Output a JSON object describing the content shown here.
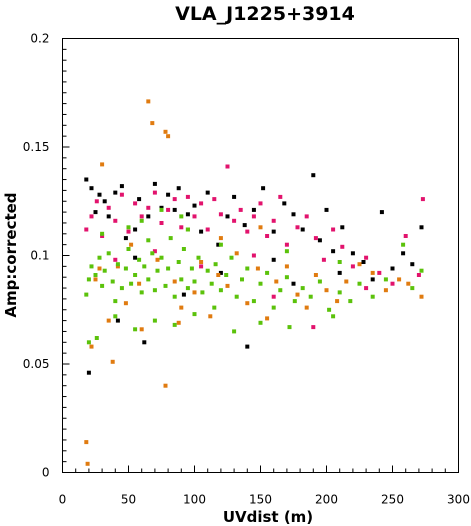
{
  "chart_data": {
    "type": "scatter",
    "title": "VLA_J1225+3914",
    "xlabel": "UVdist (m)",
    "ylabel": "Amp:corrected",
    "xlim": [
      0,
      300
    ],
    "ylim": [
      0,
      0.2
    ],
    "x_ticks": [
      "0",
      "50",
      "100",
      "150",
      "200",
      "250",
      "300"
    ],
    "y_ticks": [
      "0",
      "0.05",
      "0.1",
      "0.15",
      "0.2"
    ],
    "grid": false,
    "legend": "none",
    "series": [
      {
        "color": "#000000",
        "points": [
          [
            18,
            0.135
          ],
          [
            20,
            0.046
          ],
          [
            22,
            0.131
          ],
          [
            25,
            0.12
          ],
          [
            28,
            0.128
          ],
          [
            32,
            0.125
          ],
          [
            35,
            0.118
          ],
          [
            40,
            0.129
          ],
          [
            45,
            0.132
          ],
          [
            48,
            0.108
          ],
          [
            55,
            0.112
          ],
          [
            58,
            0.126
          ],
          [
            62,
            0.06
          ],
          [
            65,
            0.118
          ],
          [
            70,
            0.133
          ],
          [
            75,
            0.122
          ],
          [
            80,
            0.128
          ],
          [
            85,
            0.121
          ],
          [
            88,
            0.131
          ],
          [
            95,
            0.119
          ],
          [
            100,
            0.123
          ],
          [
            105,
            0.111
          ],
          [
            110,
            0.129
          ],
          [
            118,
            0.105
          ],
          [
            125,
            0.118
          ],
          [
            130,
            0.127
          ],
          [
            138,
            0.114
          ],
          [
            145,
            0.121
          ],
          [
            152,
            0.131
          ],
          [
            160,
            0.111
          ],
          [
            168,
            0.124
          ],
          [
            175,
            0.119
          ],
          [
            182,
            0.112
          ],
          [
            190,
            0.137
          ],
          [
            195,
            0.107
          ],
          [
            200,
            0.121
          ],
          [
            205,
            0.102
          ],
          [
            212,
            0.113
          ],
          [
            220,
            0.101
          ],
          [
            228,
            0.097
          ],
          [
            235,
            0.089
          ],
          [
            242,
            0.12
          ],
          [
            250,
            0.094
          ],
          [
            258,
            0.101
          ],
          [
            265,
            0.096
          ],
          [
            272,
            0.113
          ],
          [
            140,
            0.058
          ],
          [
            55,
            0.099
          ],
          [
            120,
            0.092
          ],
          [
            160,
            0.098
          ],
          [
            42,
            0.07
          ],
          [
            92,
            0.082
          ],
          [
            175,
            0.087
          ],
          [
            210,
            0.092
          ]
        ]
      },
      {
        "color": "#e2136d",
        "points": [
          [
            18,
            0.112
          ],
          [
            22,
            0.118
          ],
          [
            26,
            0.125
          ],
          [
            30,
            0.109
          ],
          [
            35,
            0.122
          ],
          [
            40,
            0.116
          ],
          [
            45,
            0.128
          ],
          [
            50,
            0.111
          ],
          [
            55,
            0.124
          ],
          [
            60,
            0.118
          ],
          [
            65,
            0.122
          ],
          [
            70,
            0.129
          ],
          [
            75,
            0.115
          ],
          [
            80,
            0.121
          ],
          [
            85,
            0.126
          ],
          [
            90,
            0.113
          ],
          [
            95,
            0.127
          ],
          [
            100,
            0.118
          ],
          [
            105,
            0.124
          ],
          [
            110,
            0.112
          ],
          [
            115,
            0.126
          ],
          [
            120,
            0.119
          ],
          [
            125,
            0.141
          ],
          [
            130,
            0.116
          ],
          [
            135,
            0.121
          ],
          [
            140,
            0.111
          ],
          [
            145,
            0.118
          ],
          [
            150,
            0.124
          ],
          [
            155,
            0.109
          ],
          [
            160,
            0.116
          ],
          [
            165,
            0.127
          ],
          [
            170,
            0.105
          ],
          [
            178,
            0.113
          ],
          [
            185,
            0.118
          ],
          [
            192,
            0.108
          ],
          [
            198,
            0.098
          ],
          [
            205,
            0.112
          ],
          [
            212,
            0.104
          ],
          [
            220,
            0.095
          ],
          [
            230,
            0.099
          ],
          [
            240,
            0.092
          ],
          [
            250,
            0.087
          ],
          [
            260,
            0.109
          ],
          [
            270,
            0.091
          ],
          [
            273,
            0.126
          ],
          [
            190,
            0.067
          ],
          [
            160,
            0.081
          ],
          [
            105,
            0.095
          ],
          [
            70,
            0.102
          ],
          [
            40,
            0.098
          ],
          [
            145,
            0.1
          ],
          [
            230,
            0.085
          ]
        ]
      },
      {
        "color": "#e07b10",
        "points": [
          [
            18,
            0.014
          ],
          [
            19,
            0.004
          ],
          [
            22,
            0.058
          ],
          [
            25,
            0.089
          ],
          [
            30,
            0.142
          ],
          [
            35,
            0.07
          ],
          [
            38,
            0.051
          ],
          [
            42,
            0.095
          ],
          [
            48,
            0.078
          ],
          [
            52,
            0.105
          ],
          [
            58,
            0.087
          ],
          [
            65,
            0.171
          ],
          [
            68,
            0.161
          ],
          [
            72,
            0.098
          ],
          [
            78,
            0.157
          ],
          [
            80,
            0.155
          ],
          [
            78,
            0.04
          ],
          [
            85,
            0.088
          ],
          [
            90,
            0.076
          ],
          [
            95,
            0.112
          ],
          [
            100,
            0.083
          ],
          [
            105,
            0.097
          ],
          [
            112,
            0.072
          ],
          [
            118,
            0.091
          ],
          [
            125,
            0.086
          ],
          [
            132,
            0.101
          ],
          [
            140,
            0.078
          ],
          [
            148,
            0.094
          ],
          [
            155,
            0.071
          ],
          [
            162,
            0.088
          ],
          [
            170,
            0.095
          ],
          [
            178,
            0.082
          ],
          [
            185,
            0.076
          ],
          [
            192,
            0.091
          ],
          [
            200,
            0.084
          ],
          [
            208,
            0.079
          ],
          [
            215,
            0.088
          ],
          [
            225,
            0.096
          ],
          [
            235,
            0.092
          ],
          [
            245,
            0.084
          ],
          [
            255,
            0.089
          ],
          [
            262,
            0.087
          ],
          [
            272,
            0.081
          ],
          [
            88,
            0.069
          ],
          [
            60,
            0.066
          ],
          [
            28,
            0.094
          ],
          [
            120,
            0.108
          ],
          [
            150,
            0.113
          ]
        ]
      },
      {
        "color": "#5bc20b",
        "points": [
          [
            18,
            0.082
          ],
          [
            20,
            0.089
          ],
          [
            22,
            0.095
          ],
          [
            25,
            0.091
          ],
          [
            28,
            0.099
          ],
          [
            30,
            0.086
          ],
          [
            32,
            0.093
          ],
          [
            35,
            0.101
          ],
          [
            38,
            0.088
          ],
          [
            40,
            0.079
          ],
          [
            42,
            0.096
          ],
          [
            45,
            0.085
          ],
          [
            48,
            0.094
          ],
          [
            50,
            0.103
          ],
          [
            52,
            0.087
          ],
          [
            55,
            0.091
          ],
          [
            58,
            0.098
          ],
          [
            60,
            0.083
          ],
          [
            62,
            0.095
          ],
          [
            65,
            0.089
          ],
          [
            68,
            0.101
          ],
          [
            70,
            0.084
          ],
          [
            72,
            0.093
          ],
          [
            75,
            0.099
          ],
          [
            78,
            0.086
          ],
          [
            80,
            0.094
          ],
          [
            82,
            0.108
          ],
          [
            85,
            0.081
          ],
          [
            88,
            0.097
          ],
          [
            90,
            0.089
          ],
          [
            92,
            0.103
          ],
          [
            95,
            0.085
          ],
          [
            98,
            0.094
          ],
          [
            100,
            0.088
          ],
          [
            103,
            0.099
          ],
          [
            106,
            0.083
          ],
          [
            110,
            0.093
          ],
          [
            113,
            0.087
          ],
          [
            116,
            0.096
          ],
          [
            120,
            0.084
          ],
          [
            124,
            0.091
          ],
          [
            128,
            0.099
          ],
          [
            132,
            0.081
          ],
          [
            136,
            0.089
          ],
          [
            140,
            0.094
          ],
          [
            145,
            0.079
          ],
          [
            150,
            0.087
          ],
          [
            155,
            0.092
          ],
          [
            160,
            0.076
          ],
          [
            165,
            0.084
          ],
          [
            170,
            0.09
          ],
          [
            176,
            0.079
          ],
          [
            182,
            0.085
          ],
          [
            188,
            0.081
          ],
          [
            195,
            0.088
          ],
          [
            202,
            0.075
          ],
          [
            210,
            0.083
          ],
          [
            218,
            0.079
          ],
          [
            225,
            0.087
          ],
          [
            235,
            0.081
          ],
          [
            245,
            0.089
          ],
          [
            258,
            0.105
          ],
          [
            265,
            0.085
          ],
          [
            272,
            0.093
          ],
          [
            26,
            0.062
          ],
          [
            40,
            0.072
          ],
          [
            55,
            0.066
          ],
          [
            70,
            0.07
          ],
          [
            85,
            0.068
          ],
          [
            100,
            0.073
          ],
          [
            115,
            0.076
          ],
          [
            130,
            0.065
          ],
          [
            150,
            0.069
          ],
          [
            172,
            0.067
          ],
          [
            205,
            0.072
          ],
          [
            60,
            0.116
          ],
          [
            75,
            0.121
          ],
          [
            90,
            0.118
          ],
          [
            30,
            0.11
          ],
          [
            50,
            0.113
          ],
          [
            65,
            0.107
          ],
          [
            95,
            0.112
          ],
          [
            120,
            0.105
          ],
          [
            170,
            0.102
          ],
          [
            210,
            0.097
          ],
          [
            20,
            0.06
          ]
        ]
      }
    ]
  }
}
